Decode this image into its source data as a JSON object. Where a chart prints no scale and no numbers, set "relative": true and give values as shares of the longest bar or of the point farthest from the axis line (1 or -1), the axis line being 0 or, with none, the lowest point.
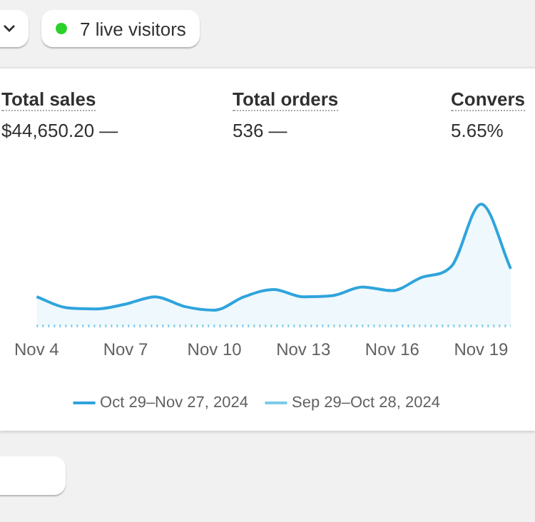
{
  "chart_data": {
    "type": "area",
    "relative": true,
    "legend": "bottom",
    "marker": "none",
    "categories": [
      "Nov 4",
      null,
      null,
      "Nov 7",
      null,
      null,
      "Nov 10",
      null,
      null,
      "Nov 13",
      null,
      null,
      "Nov 16",
      null,
      null,
      "Nov 19",
      null
    ],
    "series": [
      {
        "name": "Oct 29–Nov 27, 2024",
        "type": "area",
        "color": "#2fa4dc",
        "line_style": "solid",
        "values": [
          0.24,
          0.15,
          0.14,
          0.18,
          0.24,
          0.16,
          0.13,
          0.24,
          0.3,
          0.24,
          0.25,
          0.32,
          0.29,
          0.4,
          0.49,
          1.0,
          0.47
        ]
      },
      {
        "name": "Sep 29–Oct 28, 2024",
        "type": "line",
        "color": "#7ccbe8",
        "line_style": "dotted",
        "values": [
          0,
          0,
          0,
          0,
          0,
          0,
          0,
          0,
          0,
          0,
          0,
          0,
          0,
          0,
          0,
          0,
          0
        ]
      }
    ],
    "annotations": [
      "7 live visitors",
      "Total sales",
      "$44,650.20 —",
      "Total orders",
      "536 —",
      "Convers",
      "5.65%"
    ]
  }
}
